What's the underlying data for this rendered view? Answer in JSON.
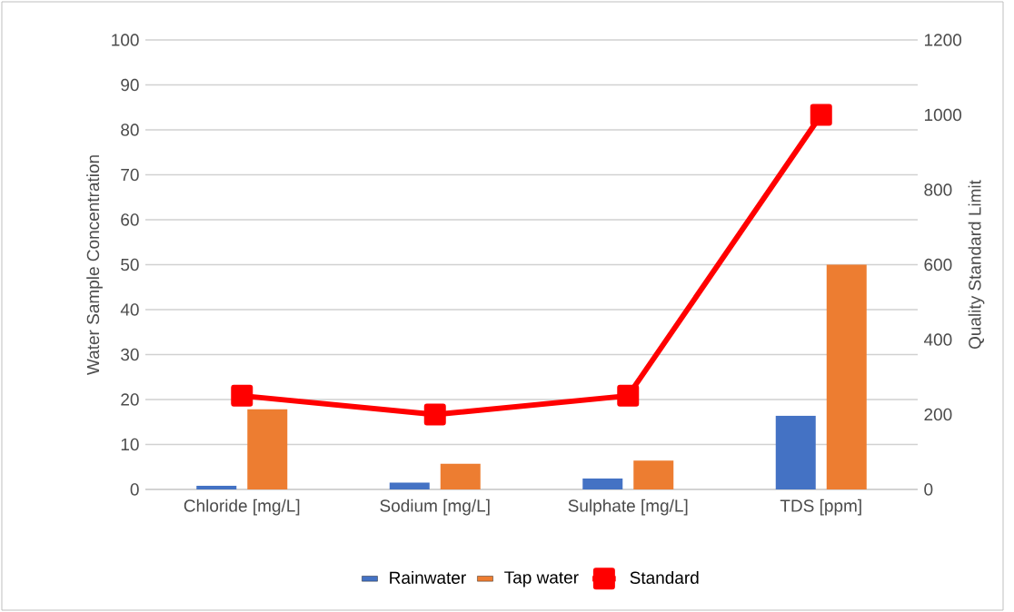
{
  "chart_data": {
    "type": "bar",
    "categories": [
      "Chloride [mg/L]",
      "Sodium [mg/L]",
      "Sulphate [mg/L]",
      "TDS [ppm]"
    ],
    "ylabel": "Water Sample Concentration",
    "y2label": "Quality Standard Limit",
    "ylim": [
      0,
      100
    ],
    "yticks": [
      0,
      10,
      20,
      30,
      40,
      50,
      60,
      70,
      80,
      90,
      100
    ],
    "y2lim": [
      0,
      1200
    ],
    "y2ticks": [
      0,
      200,
      400,
      600,
      800,
      1000,
      1200
    ],
    "grid": "y",
    "legend": "bottom",
    "series": [
      {
        "name": "Rainwater",
        "color": "#4472c4",
        "values": [
          0.8,
          1.5,
          2.4,
          16.4
        ]
      },
      {
        "name": "Tap water",
        "color": "#ed7d31",
        "values": [
          17.8,
          5.7,
          6.4,
          50
        ]
      },
      {
        "name": "Standard",
        "type": "line",
        "axis": "y2",
        "color": "#ff0000",
        "marker": "square",
        "line_style": "solid",
        "values": [
          250,
          200,
          250,
          1000
        ]
      }
    ]
  }
}
